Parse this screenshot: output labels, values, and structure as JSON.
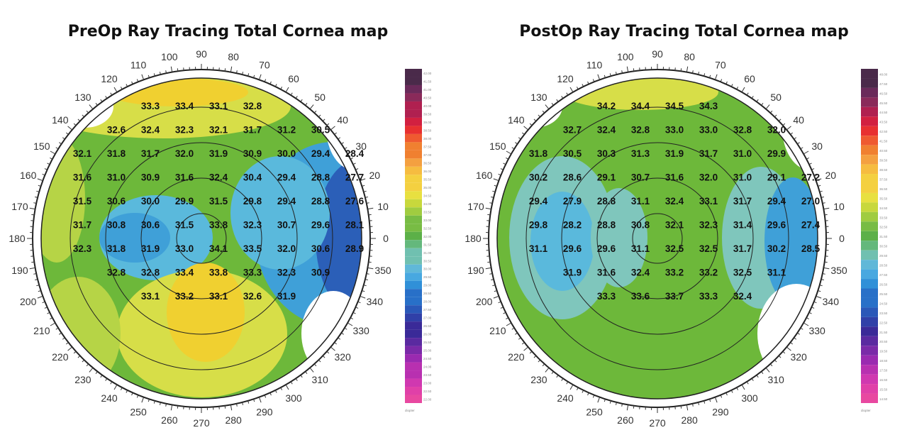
{
  "preop": {
    "title": "PreOp Ray Tracing Total Cornea map",
    "scale_unit": "diopter",
    "scale_ticks": [
      "42.00",
      "41.50",
      "41.00",
      "40.50",
      "40.00",
      "39.50",
      "39.00",
      "38.50",
      "38.00",
      "37.50",
      "37.00",
      "36.50",
      "36.00",
      "35.50",
      "35.00",
      "34.50",
      "34.00",
      "33.50",
      "33.00",
      "32.50",
      "32.00",
      "31.50",
      "31.00",
      "30.50",
      "30.00",
      "29.50",
      "29.00",
      "28.50",
      "28.00",
      "27.50",
      "27.00",
      "26.50",
      "26.00",
      "25.50",
      "25.00",
      "24.50",
      "24.00",
      "23.50",
      "23.00",
      "22.50",
      "22.00"
    ],
    "rows": [
      [
        "",
        "",
        "33.3",
        "33.4",
        "33.1",
        "32.8",
        "",
        "",
        ""
      ],
      [
        "",
        "32.6",
        "32.4",
        "32.3",
        "32.1",
        "31.7",
        "31.2",
        "30.5",
        ""
      ],
      [
        "32.1",
        "31.8",
        "31.7",
        "32.0",
        "31.9",
        "30.9",
        "30.0",
        "29.4",
        "28.4"
      ],
      [
        "31.6",
        "31.0",
        "30.9",
        "31.6",
        "32.4",
        "30.4",
        "29.4",
        "28.8",
        "27.7"
      ],
      [
        "31.5",
        "30.6",
        "30.0",
        "29.9",
        "31.5",
        "29.8",
        "29.4",
        "28.8",
        "27.6"
      ],
      [
        "31.7",
        "30.8",
        "30.6",
        "31.5",
        "33.8",
        "32.3",
        "30.7",
        "29.6",
        "28.1"
      ],
      [
        "32.3",
        "31.8",
        "31.9",
        "33.0",
        "34.1",
        "33.5",
        "32.0",
        "30.6",
        "28.9"
      ],
      [
        "",
        "32.8",
        "32.8",
        "33.4",
        "33.8",
        "33.3",
        "32.3",
        "30.9",
        ""
      ],
      [
        "",
        "",
        "33.1",
        "33.2",
        "33.1",
        "32.6",
        "31.9",
        "",
        ""
      ]
    ]
  },
  "postop": {
    "title": "PostOp Ray Tracing Total Cornea map",
    "scale_unit": "diopter",
    "scale_ticks": [
      "48.00",
      "47.50",
      "46.50",
      "45.50",
      "44.50",
      "43.50",
      "42.50",
      "41.50",
      "40.50",
      "39.50",
      "38.50",
      "37.50",
      "36.50",
      "35.50",
      "34.50",
      "33.50",
      "32.50",
      "31.50",
      "30.50",
      "29.50",
      "28.50",
      "27.50",
      "26.50",
      "25.50",
      "24.50",
      "23.50",
      "22.50",
      "21.50",
      "20.50",
      "19.50",
      "18.50",
      "17.50",
      "16.50",
      "15.50",
      "14.50"
    ],
    "rows": [
      [
        "",
        "",
        "34.2",
        "34.4",
        "34.5",
        "34.3",
        "",
        "",
        ""
      ],
      [
        "",
        "32.7",
        "32.4",
        "32.8",
        "33.0",
        "33.0",
        "32.8",
        "32.0",
        ""
      ],
      [
        "31.8",
        "30.5",
        "30.3",
        "31.3",
        "31.9",
        "31.7",
        "31.0",
        "29.9",
        ""
      ],
      [
        "30.2",
        "28.6",
        "29.1",
        "30.7",
        "31.6",
        "32.0",
        "31.0",
        "29.1",
        "27.2"
      ],
      [
        "29.4",
        "27.9",
        "28.8",
        "31.1",
        "32.4",
        "33.1",
        "31.7",
        "29.4",
        "27.0"
      ],
      [
        "29.8",
        "28.2",
        "28.8",
        "30.8",
        "32.1",
        "32.3",
        "31.4",
        "29.6",
        "27.4"
      ],
      [
        "31.1",
        "29.6",
        "29.6",
        "31.1",
        "32.5",
        "32.5",
        "31.7",
        "30.2",
        "28.5"
      ],
      [
        "",
        "31.9",
        "31.6",
        "32.4",
        "33.2",
        "33.2",
        "32.5",
        "31.1",
        ""
      ],
      [
        "",
        "",
        "33.3",
        "33.6",
        "33.7",
        "33.3",
        "32.4",
        "",
        ""
      ]
    ]
  },
  "degree_labels": [
    "0",
    "10",
    "20",
    "30",
    "40",
    "50",
    "60",
    "70",
    "80",
    "90",
    "100",
    "110",
    "120",
    "130",
    "140",
    "150",
    "160",
    "170",
    "180",
    "190",
    "200",
    "210",
    "220",
    "230",
    "240",
    "250",
    "260",
    "270",
    "280",
    "290",
    "300",
    "310",
    "320",
    "330",
    "340",
    "350"
  ]
}
